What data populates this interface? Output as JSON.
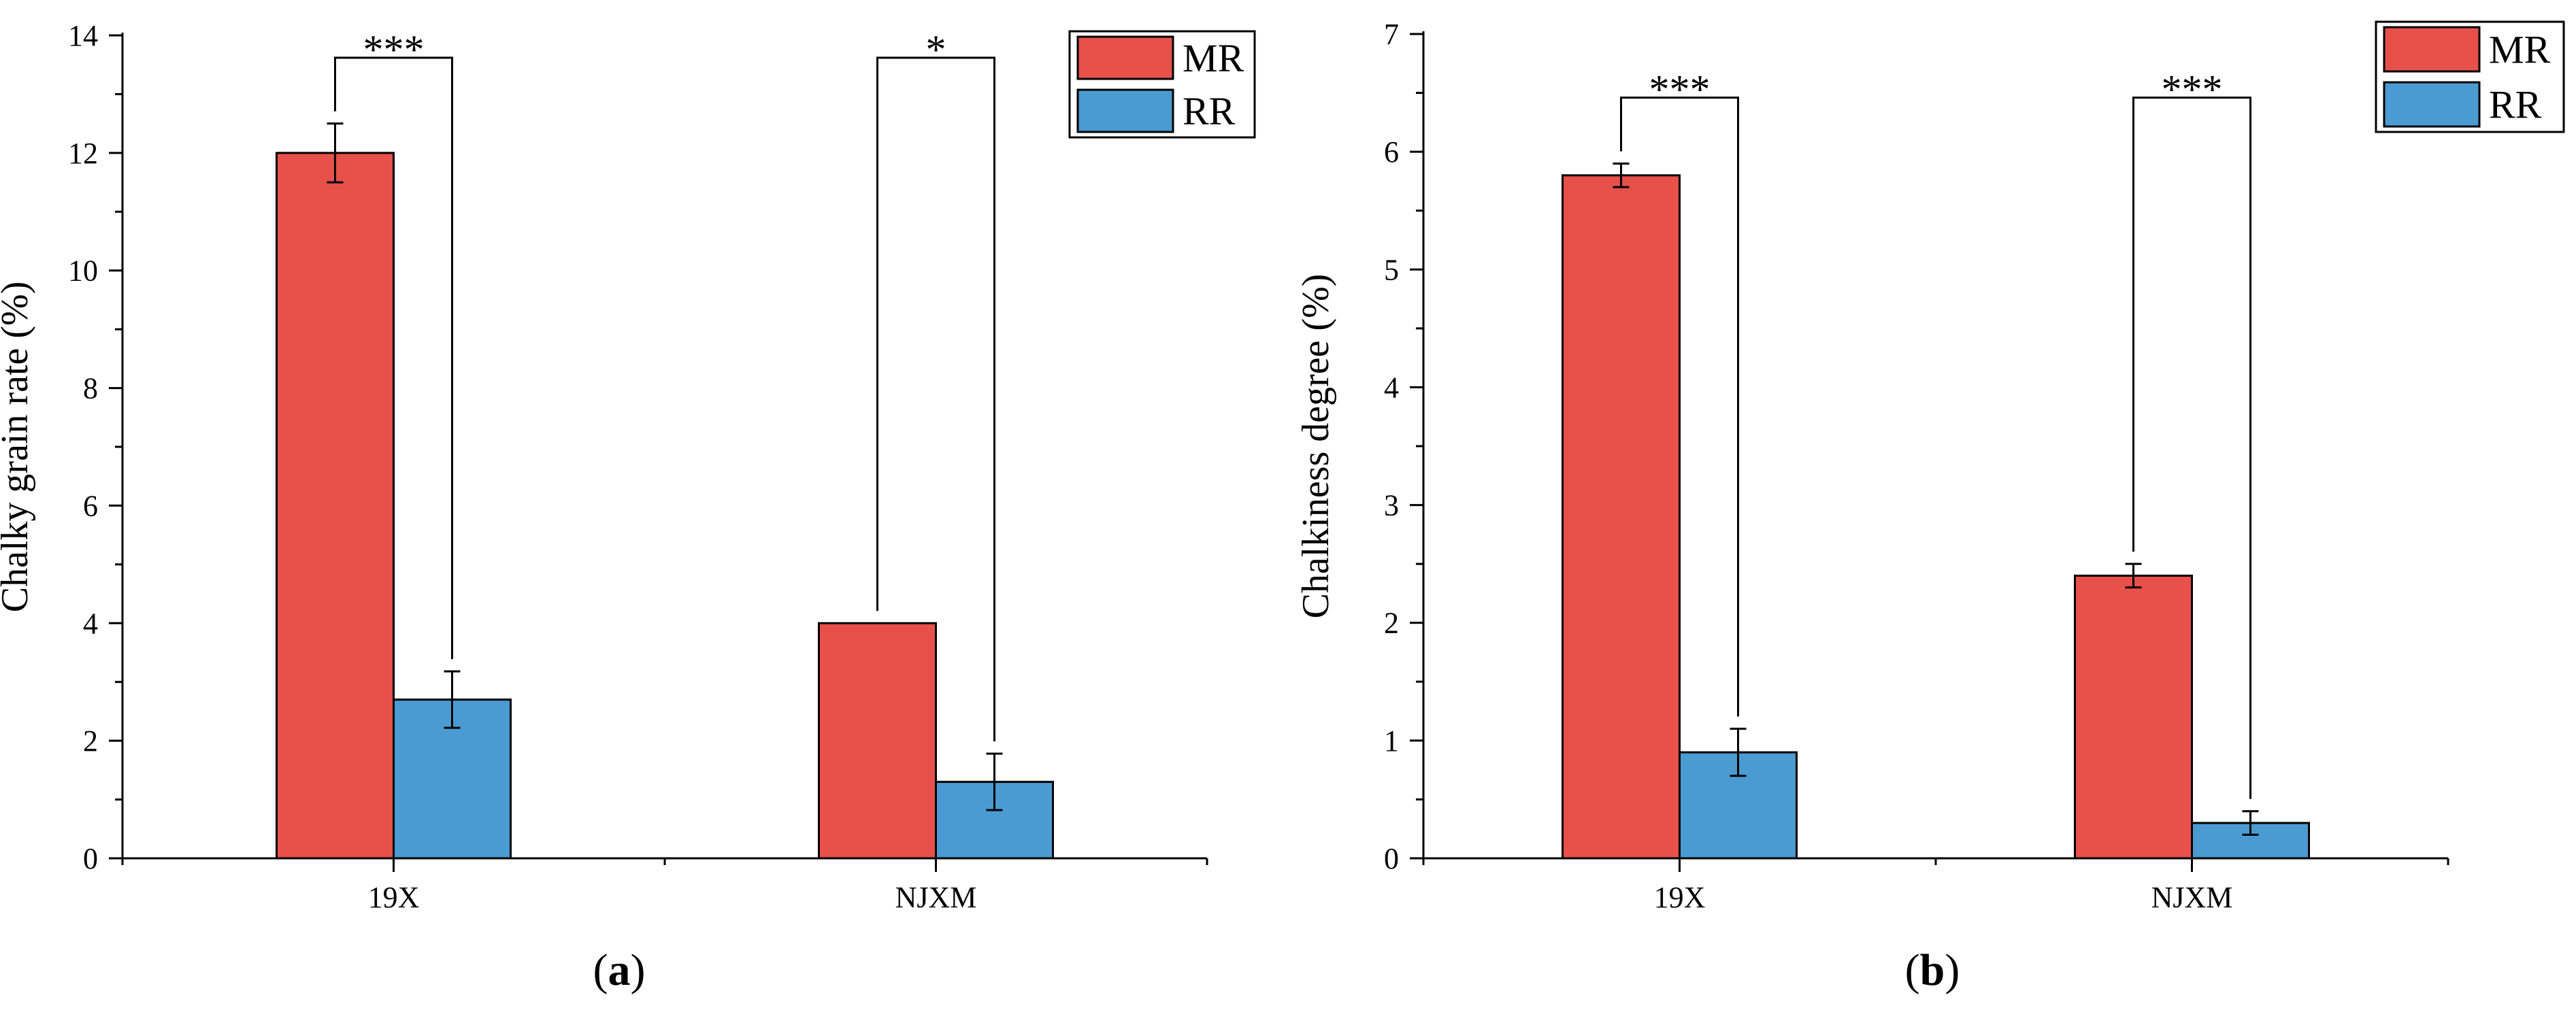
{
  "chart_data": [
    {
      "type": "bar",
      "panel_label": "a",
      "title": "",
      "xlabel": "",
      "ylabel": "Chalky grain rate (%)",
      "ylim": [
        0,
        14
      ],
      "yticks": [
        0,
        2,
        4,
        6,
        8,
        10,
        12,
        14
      ],
      "categories": [
        "19X",
        "NJXM"
      ],
      "series": [
        {
          "name": "MR",
          "color": "#e8504a",
          "values": [
            12.0,
            4.0
          ],
          "errors": [
            0.5,
            0.0
          ]
        },
        {
          "name": "RR",
          "color": "#4a9bd1",
          "values": [
            2.7,
            1.3
          ],
          "errors": [
            0.48,
            0.48
          ]
        }
      ],
      "significance": [
        "***",
        "*"
      ],
      "legend": {
        "position": "top-right",
        "entries": [
          "MR",
          "RR"
        ]
      }
    },
    {
      "type": "bar",
      "panel_label": "b",
      "title": "",
      "xlabel": "",
      "ylabel": "Chalkiness degree (%)",
      "ylim": [
        0,
        7
      ],
      "yticks": [
        0,
        1,
        2,
        3,
        4,
        5,
        6,
        7
      ],
      "categories": [
        "19X",
        "NJXM"
      ],
      "series": [
        {
          "name": "MR",
          "color": "#e8504a",
          "values": [
            5.8,
            2.4
          ],
          "errors": [
            0.1,
            0.1
          ]
        },
        {
          "name": "RR",
          "color": "#4a9bd1",
          "values": [
            0.9,
            0.3
          ],
          "errors": [
            0.2,
            0.1
          ]
        }
      ],
      "significance": [
        "***",
        "***"
      ],
      "legend": {
        "position": "top-right",
        "entries": [
          "MR",
          "RR"
        ]
      }
    }
  ]
}
